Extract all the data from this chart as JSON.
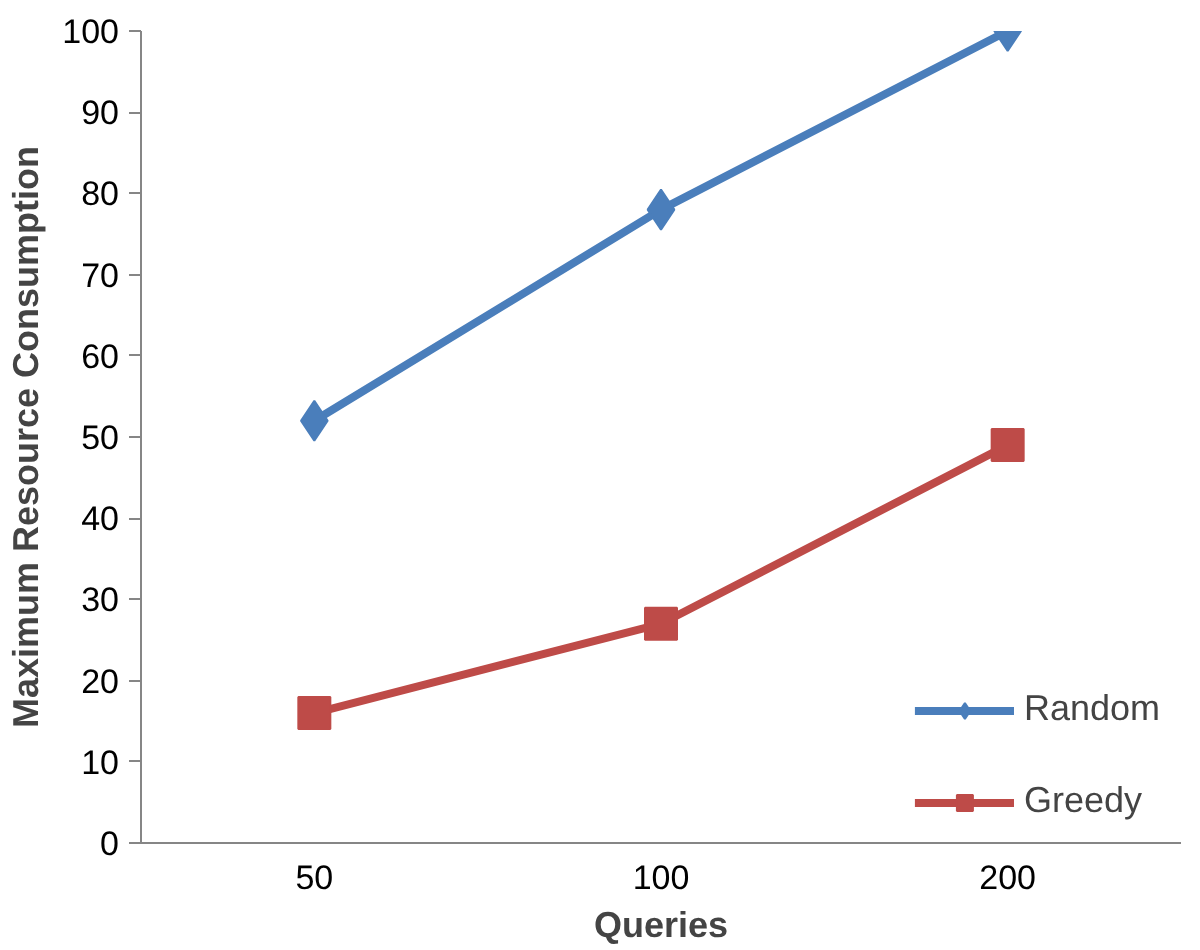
{
  "chart_data": {
    "type": "line",
    "xlabel": "Queries",
    "ylabel": "Maximum Resource Consumption",
    "categories": [
      "50",
      "100",
      "200"
    ],
    "series": [
      {
        "name": "Random",
        "color": "#4a7ebb",
        "marker": "diamond",
        "values": [
          52,
          78,
          100
        ]
      },
      {
        "name": "Greedy",
        "color": "#be4b48",
        "marker": "square",
        "values": [
          16,
          27,
          49
        ]
      }
    ],
    "ylim": [
      0,
      100
    ],
    "yticks": [
      0,
      10,
      20,
      30,
      40,
      50,
      60,
      70,
      80,
      90,
      100
    ],
    "grid": false,
    "legend": "bottom right"
  }
}
